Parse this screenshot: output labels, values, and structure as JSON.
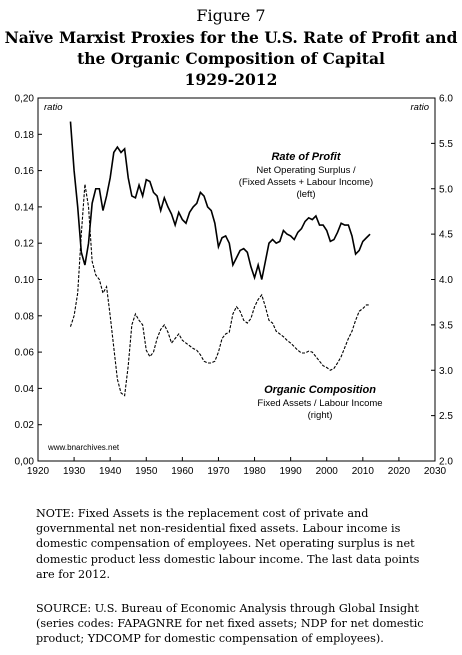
{
  "figure_label": "Figure 7",
  "title_lines": [
    "Naïve Marxist Proxies for the U.S. Rate of Profit and",
    "the Organic Composition of Capital",
    "1929-2012"
  ],
  "note": "NOTE: Fixed Assets is the replacement cost of private and governmental net non-residential fixed assets. Labour income is domestic compensation of employees. Net operating surplus is net domestic product less domestic labour income. The last data points are for 2012.",
  "source": "SOURCE: U.S. Bureau of Economic Analysis through Global Insight (series codes: FAPAGNRE for net fixed assets; NDP for net domestic product; YDCOMP for domestic compensation of employees).",
  "chart_data": {
    "type": "line",
    "left_axis_unit": "ratio",
    "right_axis_unit": "ratio",
    "xlim": [
      1920,
      2030
    ],
    "ylim_left": [
      0,
      0.2
    ],
    "ylim_right": [
      2.0,
      6.0
    ],
    "x_ticks": [
      "1920",
      "1930",
      "1940",
      "1950",
      "1960",
      "1970",
      "1980",
      "1990",
      "2000",
      "2010",
      "2020",
      "2030"
    ],
    "y_ticks_left": [
      "0,00",
      "0.02",
      "0.04",
      "0.06",
      "0.08",
      "0.10",
      "0.12",
      "0.14",
      "0.16",
      "0.18",
      "0,20"
    ],
    "y_ticks_right": [
      "2.0",
      "2.5",
      "3.0",
      "3.5",
      "4.0",
      "4.5",
      "5.0",
      "5.5",
      "6.0"
    ],
    "grid": false,
    "watermark": "www.bnarchives.net",
    "series": [
      {
        "name": "Rate of Profit",
        "label_lines": [
          "Net Operating Surplus /",
          "(Fixed Assets + Labour Income)",
          "(left)"
        ],
        "axis": "left",
        "style": "solid",
        "x": [
          1929,
          1930,
          1931,
          1932,
          1933,
          1934,
          1935,
          1936,
          1937,
          1938,
          1939,
          1940,
          1941,
          1942,
          1943,
          1944,
          1945,
          1946,
          1947,
          1948,
          1949,
          1950,
          1951,
          1952,
          1953,
          1954,
          1955,
          1956,
          1957,
          1958,
          1959,
          1960,
          1961,
          1962,
          1963,
          1964,
          1965,
          1966,
          1967,
          1968,
          1969,
          1970,
          1971,
          1972,
          1973,
          1974,
          1975,
          1976,
          1977,
          1978,
          1979,
          1980,
          1981,
          1982,
          1983,
          1984,
          1985,
          1986,
          1987,
          1988,
          1989,
          1990,
          1991,
          1992,
          1993,
          1994,
          1995,
          1996,
          1997,
          1998,
          1999,
          2000,
          2001,
          2002,
          2003,
          2004,
          2005,
          2006,
          2007,
          2008,
          2009,
          2010,
          2011,
          2012
        ],
        "values": [
          0.187,
          0.16,
          0.14,
          0.115,
          0.108,
          0.12,
          0.142,
          0.15,
          0.15,
          0.138,
          0.146,
          0.156,
          0.17,
          0.173,
          0.17,
          0.172,
          0.156,
          0.146,
          0.145,
          0.152,
          0.146,
          0.155,
          0.154,
          0.148,
          0.146,
          0.138,
          0.145,
          0.14,
          0.136,
          0.13,
          0.137,
          0.133,
          0.131,
          0.137,
          0.14,
          0.142,
          0.148,
          0.146,
          0.14,
          0.138,
          0.131,
          0.118,
          0.123,
          0.124,
          0.12,
          0.108,
          0.112,
          0.116,
          0.117,
          0.115,
          0.107,
          0.101,
          0.108,
          0.1,
          0.11,
          0.12,
          0.122,
          0.12,
          0.121,
          0.127,
          0.125,
          0.124,
          0.122,
          0.126,
          0.128,
          0.132,
          0.134,
          0.133,
          0.135,
          0.13,
          0.13,
          0.127,
          0.121,
          0.122,
          0.126,
          0.131,
          0.13,
          0.13,
          0.124,
          0.114,
          0.116,
          0.121,
          0.123,
          0.125
        ]
      },
      {
        "name": "Organic Composition",
        "label_lines": [
          "Fixed Assets / Labour Income",
          "(right)"
        ],
        "axis": "right",
        "style": "dashed",
        "x": [
          1929,
          1930,
          1931,
          1932,
          1933,
          1934,
          1935,
          1936,
          1937,
          1938,
          1939,
          1940,
          1941,
          1942,
          1943,
          1944,
          1945,
          1946,
          1947,
          1948,
          1949,
          1950,
          1951,
          1952,
          1953,
          1954,
          1955,
          1956,
          1957,
          1958,
          1959,
          1960,
          1961,
          1962,
          1963,
          1964,
          1965,
          1966,
          1967,
          1968,
          1969,
          1970,
          1971,
          1972,
          1973,
          1974,
          1975,
          1976,
          1977,
          1978,
          1979,
          1980,
          1981,
          1982,
          1983,
          1984,
          1985,
          1986,
          1987,
          1988,
          1989,
          1990,
          1991,
          1992,
          1993,
          1994,
          1995,
          1996,
          1997,
          1998,
          1999,
          2000,
          2001,
          2002,
          2003,
          2004,
          2005,
          2006,
          2007,
          2008,
          2009,
          2010,
          2011,
          2012
        ],
        "values": [
          3.48,
          3.6,
          3.85,
          4.5,
          5.05,
          4.8,
          4.2,
          4.05,
          4.0,
          3.85,
          3.92,
          3.6,
          3.25,
          2.9,
          2.75,
          2.72,
          3.05,
          3.5,
          3.62,
          3.55,
          3.5,
          3.22,
          3.15,
          3.2,
          3.35,
          3.45,
          3.5,
          3.42,
          3.3,
          3.35,
          3.4,
          3.33,
          3.3,
          3.27,
          3.24,
          3.22,
          3.17,
          3.1,
          3.08,
          3.08,
          3.1,
          3.2,
          3.35,
          3.4,
          3.42,
          3.62,
          3.7,
          3.65,
          3.55,
          3.52,
          3.57,
          3.7,
          3.78,
          3.83,
          3.7,
          3.55,
          3.52,
          3.43,
          3.4,
          3.37,
          3.33,
          3.3,
          3.26,
          3.22,
          3.19,
          3.19,
          3.21,
          3.2,
          3.15,
          3.1,
          3.05,
          3.03,
          3.0,
          3.02,
          3.08,
          3.15,
          3.25,
          3.35,
          3.43,
          3.55,
          3.65,
          3.68,
          3.72,
          3.72
        ]
      }
    ]
  }
}
